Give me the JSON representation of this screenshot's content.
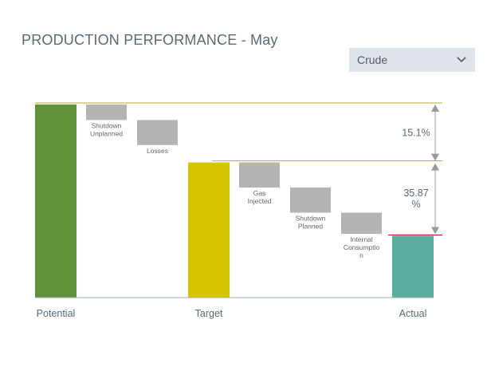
{
  "header": {
    "title": "PRODUCTION PERFORMANCE - May"
  },
  "filter": {
    "selected": "Crude",
    "icon": "chevron-down-icon"
  },
  "chart_data": {
    "type": "waterfall",
    "title": "PRODUCTION PERFORMANCE - May",
    "ylim": [
      0,
      100
    ],
    "totals": [
      {
        "name": "Potential",
        "value": 100,
        "color": "#62913c"
      },
      {
        "name": "Target",
        "value": 70,
        "color": "#d4c500"
      },
      {
        "name": "Actual",
        "value": 32,
        "color": "#5baf9e"
      }
    ],
    "steps": [
      {
        "label": [
          "Shutdown",
          "Unplanned"
        ],
        "from": 100,
        "to": 92
      },
      {
        "label": [
          "Losses"
        ],
        "from": 92,
        "to": 79
      },
      {
        "label": [
          "Gas",
          "Injected"
        ],
        "from": 70,
        "to": 57
      },
      {
        "label": [
          "Shutdown",
          "Planned"
        ],
        "from": 57,
        "to": 44
      },
      {
        "label": [
          "Internal",
          "Consumptio",
          "n"
        ],
        "from": 44,
        "to": 33
      }
    ],
    "annotations": [
      {
        "text": [
          "15.1%"
        ],
        "between": [
          100,
          71
        ]
      },
      {
        "text": [
          "35.87",
          "%"
        ],
        "between": [
          71,
          32
        ]
      }
    ],
    "colors": {
      "step": "#b4b4b4",
      "reference_line": "#b5ab3a",
      "actual_line": "#a3242a",
      "arrow": "#9a9a9a",
      "axis": "#9fb0a8",
      "text": "#5a6a75",
      "small_text": "#666666"
    }
  }
}
